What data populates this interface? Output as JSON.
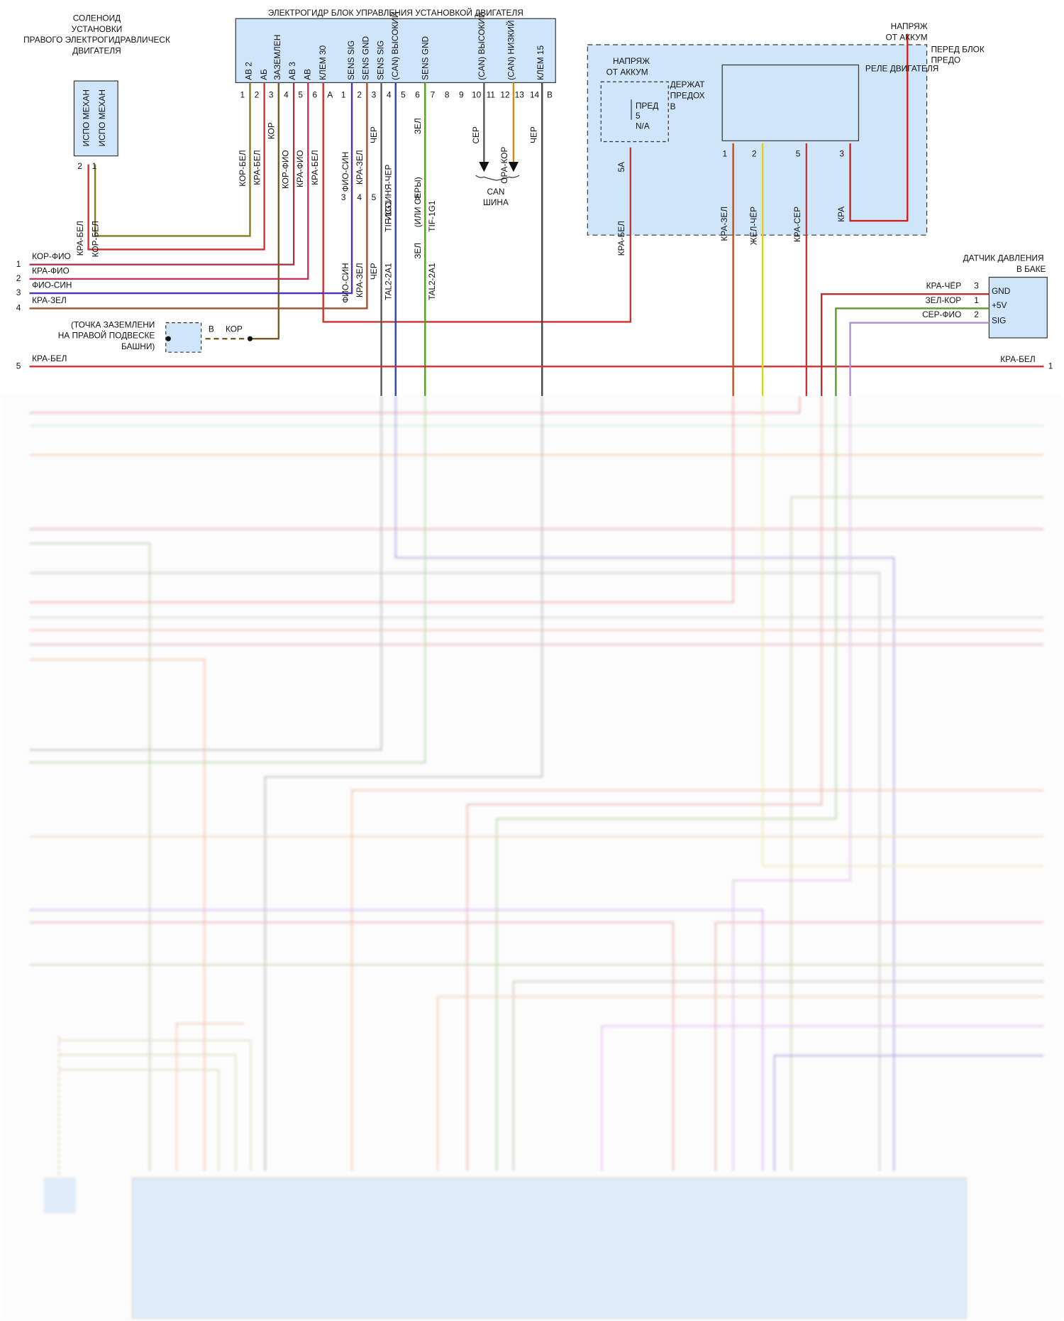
{
  "solenoid": {
    "title": [
      "СОЛЕНОИД",
      "УСТАНОВКИ",
      "ПРАВОГО ЭЛЕКТРОГИДРАВЛИЧЕСК",
      "ДВИГАТЕЛЯ"
    ],
    "box_labels": [
      "ИСПО МЕХАН",
      "ИСПО МЕХАН"
    ],
    "pins": [
      "2",
      "1"
    ],
    "wires": [
      "КРА-БЕЛ",
      "КОР-БЕЛ"
    ]
  },
  "ecu": {
    "title": "ЭЛЕКТРОГИДР БЛОК УПРАВЛЕНИЯ УСТАНОВКОЙ ДВИГАТЕЛЯ",
    "pin_labels": [
      "АВ 2",
      "АБ",
      "ЗАЗЕМЛЕН",
      "АВ 3",
      "АВ",
      "КЛЕМ 30",
      "SENS SIG",
      "SENS GND",
      "SENS SIG",
      "(CAN) ВЫСОКИЙ",
      "SENS GND",
      "(CAN) ВЫСОКИЙ",
      "(CAN) НИЗКИЙ",
      "КЛЕМ 15"
    ],
    "pins": [
      "1",
      "2",
      "3",
      "4",
      "5",
      "6",
      "A",
      "1",
      "2",
      "3",
      "4",
      "5",
      "6",
      "7",
      "8",
      "9",
      "10",
      "11",
      "12",
      "13",
      "14",
      "B"
    ],
    "wires": [
      "КОР-БЕЛ",
      "КРА-БЕЛ",
      "КОР",
      "КОР-ФИО",
      "КРА-ФИО",
      "КРА-БЕЛ",
      "ФИО-СИН",
      "КРА-ЗЕЛ",
      "ЧЕР",
      "ИССИНЯ-ЧЕР",
      "TIF-1G1",
      "ЗЕЛ",
      "(ИЛИ СЕРЫ)",
      "TIF-1G1",
      "СЕР",
      "ОРА-КОР",
      "ЧЕР"
    ],
    "connector_pins": [
      "3",
      "4",
      "5",
      "6"
    ],
    "connector_wires": [
      "ФИО-СИН",
      "КРА-ЗЕЛ",
      "ЧЕР",
      "TAL2-2A1",
      "ЗЕЛ",
      "TAL2-2A1"
    ]
  },
  "can_bus": {
    "label": [
      "CAN",
      "ШИНА"
    ]
  },
  "harness": {
    "rows": [
      {
        "number": "1",
        "wire": "КОР-ФИО"
      },
      {
        "number": "2",
        "wire": "КРА-ФИО"
      },
      {
        "number": "3",
        "wire": "ФИО-СИН"
      },
      {
        "number": "4",
        "wire": "КРА-ЗЕЛ"
      },
      {
        "number": "5",
        "wire": "КРА-БЕЛ"
      }
    ],
    "right_wire": "КРА-БЕЛ",
    "right_number": "1"
  },
  "ground": {
    "label": [
      "(ТОЧКА ЗАЗЕМЛЕНИ",
      "НА ПРАВОЙ ПОДВЕСКЕ",
      "БАШНИ)"
    ],
    "pin": "B",
    "wire": "КОР"
  },
  "relay_box": {
    "supply": [
      "НАПРЯЖ",
      "ОТ АККУМ"
    ],
    "location": [
      "ПЕРЕД БЛОК",
      "ПРЕДО"
    ],
    "fuse_supply": [
      "НАПРЯЖ",
      "ОТ АККУМ"
    ],
    "fuse_holder": [
      "ДЕРЖАТ",
      "ПРЕДОХ",
      "В"
    ],
    "fuse": [
      "ПРЕД",
      "5",
      "N/A"
    ],
    "fuse_pin": "5A",
    "fuse_wire": "КРА-БЕЛ",
    "relay_title": "РЕЛЕ ДВИГАТЕЛЯ",
    "pins": [
      "1",
      "2",
      "5",
      "3"
    ],
    "wires": [
      "КРА-ЗЕЛ",
      "ЖЁЛ-ЧЁР",
      "КРА-СЕР",
      "КРА"
    ]
  },
  "pressure_sensor": {
    "title": [
      "ДАТЧИК ДАВЛЕНИЯ",
      "В БАКЕ"
    ],
    "pin_labels": [
      "GND",
      "+5V",
      "SIG"
    ],
    "pins": [
      "3",
      "1",
      "2"
    ],
    "wires": [
      "КРА-ЧЁР",
      "ЗЕЛ-КОР",
      "СЕР-ФИО"
    ]
  }
}
